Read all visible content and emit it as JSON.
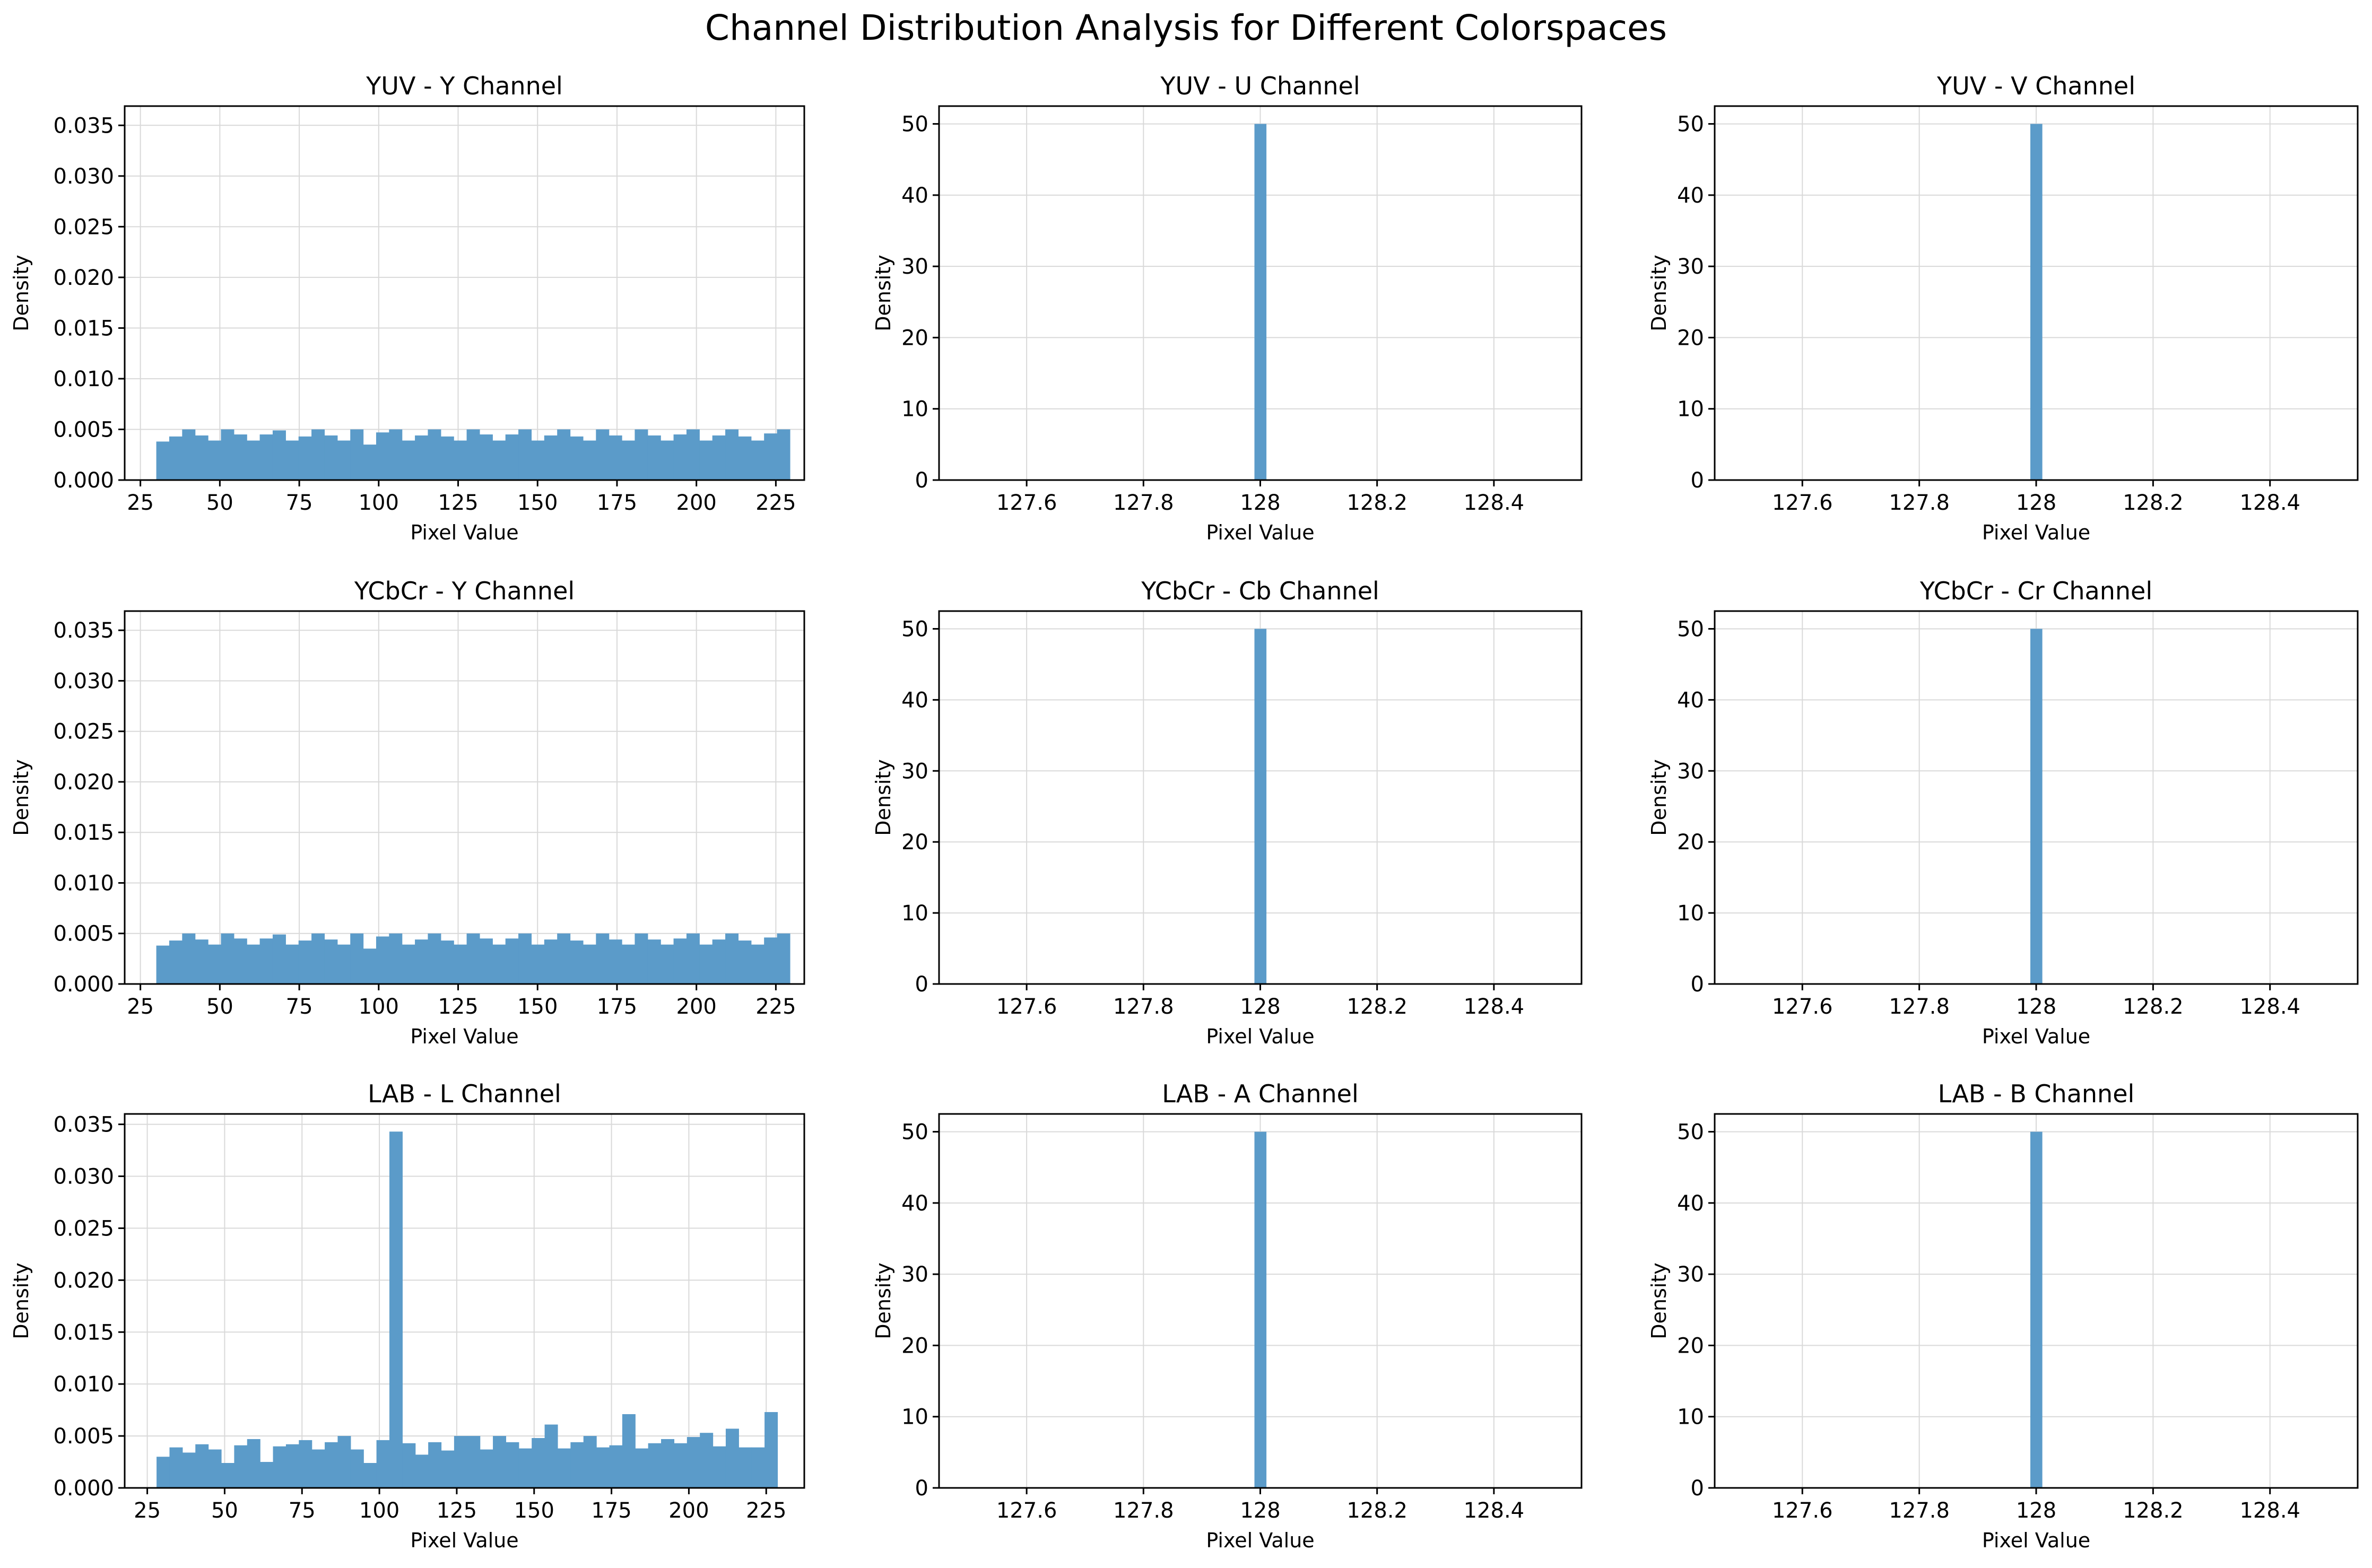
{
  "title": "Channel Distribution Analysis for Different Colorspaces",
  "colors": {
    "bar": "#5b9bc9",
    "grid": "#d9d9d9"
  },
  "chart_data": [
    {
      "type": "bar",
      "title": "YUV - Y Channel",
      "xlabel": "Pixel Value",
      "ylabel": "Density",
      "xlim": [
        20.05,
        233.95
      ],
      "ylim": [
        0,
        0.0369
      ],
      "xticks": [
        25,
        50,
        75,
        100,
        125,
        150,
        175,
        200,
        225
      ],
      "yticks": [
        0.0,
        0.005,
        0.01,
        0.015,
        0.02,
        0.025,
        0.03,
        0.035
      ],
      "ytick_decimals": 3,
      "grid": true,
      "bin_start": 30,
      "bin_width": 4.07,
      "values": [
        0.0038,
        0.0043,
        0.005,
        0.0044,
        0.0039,
        0.005,
        0.0045,
        0.0039,
        0.0045,
        0.0049,
        0.0039,
        0.0043,
        0.005,
        0.0044,
        0.0039,
        0.005,
        0.0035,
        0.0047,
        0.005,
        0.0039,
        0.0044,
        0.005,
        0.0043,
        0.0039,
        0.005,
        0.0045,
        0.0039,
        0.0045,
        0.005,
        0.0039,
        0.0044,
        0.005,
        0.0043,
        0.0039,
        0.005,
        0.0044,
        0.0039,
        0.005,
        0.0044,
        0.0039,
        0.0045,
        0.005,
        0.0039,
        0.0044,
        0.005,
        0.0043,
        0.0039,
        0.0046,
        0.005
      ]
    },
    {
      "type": "bar",
      "title": "YUV - U Channel",
      "xlabel": "Pixel Value",
      "ylabel": "Density",
      "xlim": [
        127.45,
        128.55
      ],
      "ylim": [
        0,
        52.5
      ],
      "xticks": [
        127.6,
        127.8,
        128.0,
        128.2,
        128.4
      ],
      "yticks": [
        0,
        10,
        20,
        30,
        40,
        50
      ],
      "ytick_decimals": 0,
      "grid": true,
      "bin_start": 127.99,
      "bin_width": 0.02,
      "values": [
        50
      ]
    },
    {
      "type": "bar",
      "title": "YUV - V Channel",
      "xlabel": "Pixel Value",
      "ylabel": "Density",
      "xlim": [
        127.45,
        128.55
      ],
      "ylim": [
        0,
        52.5
      ],
      "xticks": [
        127.6,
        127.8,
        128.0,
        128.2,
        128.4
      ],
      "yticks": [
        0,
        10,
        20,
        30,
        40,
        50
      ],
      "ytick_decimals": 0,
      "grid": true,
      "bin_start": 127.99,
      "bin_width": 0.02,
      "values": [
        50
      ]
    },
    {
      "type": "bar",
      "title": "YCbCr - Y Channel",
      "xlabel": "Pixel Value",
      "ylabel": "Density",
      "xlim": [
        20.05,
        233.95
      ],
      "ylim": [
        0,
        0.0369
      ],
      "xticks": [
        25,
        50,
        75,
        100,
        125,
        150,
        175,
        200,
        225
      ],
      "yticks": [
        0.0,
        0.005,
        0.01,
        0.015,
        0.02,
        0.025,
        0.03,
        0.035
      ],
      "ytick_decimals": 3,
      "grid": true,
      "bin_start": 30,
      "bin_width": 4.07,
      "values": [
        0.0038,
        0.0043,
        0.005,
        0.0044,
        0.0039,
        0.005,
        0.0045,
        0.0039,
        0.0045,
        0.0049,
        0.0039,
        0.0043,
        0.005,
        0.0044,
        0.0039,
        0.005,
        0.0035,
        0.0047,
        0.005,
        0.0039,
        0.0044,
        0.005,
        0.0043,
        0.0039,
        0.005,
        0.0045,
        0.0039,
        0.0045,
        0.005,
        0.0039,
        0.0044,
        0.005,
        0.0043,
        0.0039,
        0.005,
        0.0044,
        0.0039,
        0.005,
        0.0044,
        0.0039,
        0.0045,
        0.005,
        0.0039,
        0.0044,
        0.005,
        0.0043,
        0.0039,
        0.0046,
        0.005
      ]
    },
    {
      "type": "bar",
      "title": "YCbCr - Cb Channel",
      "xlabel": "Pixel Value",
      "ylabel": "Density",
      "xlim": [
        127.45,
        128.55
      ],
      "ylim": [
        0,
        52.5
      ],
      "xticks": [
        127.6,
        127.8,
        128.0,
        128.2,
        128.4
      ],
      "yticks": [
        0,
        10,
        20,
        30,
        40,
        50
      ],
      "ytick_decimals": 0,
      "grid": true,
      "bin_start": 127.99,
      "bin_width": 0.02,
      "values": [
        50
      ]
    },
    {
      "type": "bar",
      "title": "YCbCr - Cr Channel",
      "xlabel": "Pixel Value",
      "ylabel": "Density",
      "xlim": [
        127.45,
        128.55
      ],
      "ylim": [
        0,
        52.5
      ],
      "xticks": [
        127.6,
        127.8,
        128.0,
        128.2,
        128.4
      ],
      "yticks": [
        0,
        10,
        20,
        30,
        40,
        50
      ],
      "ytick_decimals": 0,
      "grid": true,
      "bin_start": 127.99,
      "bin_width": 0.02,
      "values": [
        50
      ]
    },
    {
      "type": "bar",
      "title": "LAB - L Channel",
      "xlabel": "Pixel Value",
      "ylabel": "Density",
      "xlim": [
        17.7,
        237.3
      ],
      "ylim": [
        0,
        0.036
      ],
      "xticks": [
        25,
        50,
        75,
        100,
        125,
        150,
        175,
        200,
        225
      ],
      "yticks": [
        0.0,
        0.005,
        0.01,
        0.015,
        0.02,
        0.025,
        0.03,
        0.035
      ],
      "ytick_decimals": 3,
      "grid": true,
      "bin_start": 28,
      "bin_width": 4.18,
      "values": [
        0.003,
        0.0039,
        0.0034,
        0.0042,
        0.0037,
        0.0024,
        0.0041,
        0.0047,
        0.0025,
        0.004,
        0.0042,
        0.0046,
        0.0037,
        0.0044,
        0.005,
        0.0037,
        0.0024,
        0.0046,
        0.0343,
        0.0043,
        0.0032,
        0.0044,
        0.0036,
        0.005,
        0.005,
        0.0037,
        0.005,
        0.0044,
        0.0038,
        0.0048,
        0.0061,
        0.0038,
        0.0044,
        0.005,
        0.0039,
        0.0041,
        0.0071,
        0.0038,
        0.0043,
        0.0047,
        0.0043,
        0.0049,
        0.0053,
        0.004,
        0.0057,
        0.0039,
        0.0039,
        0.0073
      ]
    },
    {
      "type": "bar",
      "title": "LAB - A Channel",
      "xlabel": "Pixel Value",
      "ylabel": "Density",
      "xlim": [
        127.45,
        128.55
      ],
      "ylim": [
        0,
        52.5
      ],
      "xticks": [
        127.6,
        127.8,
        128.0,
        128.2,
        128.4
      ],
      "yticks": [
        0,
        10,
        20,
        30,
        40,
        50
      ],
      "ytick_decimals": 0,
      "grid": true,
      "bin_start": 127.99,
      "bin_width": 0.02,
      "values": [
        50
      ]
    },
    {
      "type": "bar",
      "title": "LAB - B Channel",
      "xlabel": "Pixel Value",
      "ylabel": "Density",
      "xlim": [
        127.45,
        128.55
      ],
      "ylim": [
        0,
        52.5
      ],
      "xticks": [
        127.6,
        127.8,
        128.0,
        128.2,
        128.4
      ],
      "yticks": [
        0,
        10,
        20,
        30,
        40,
        50
      ],
      "ytick_decimals": 0,
      "grid": true,
      "bin_start": 127.99,
      "bin_width": 0.02,
      "values": [
        50
      ]
    }
  ]
}
